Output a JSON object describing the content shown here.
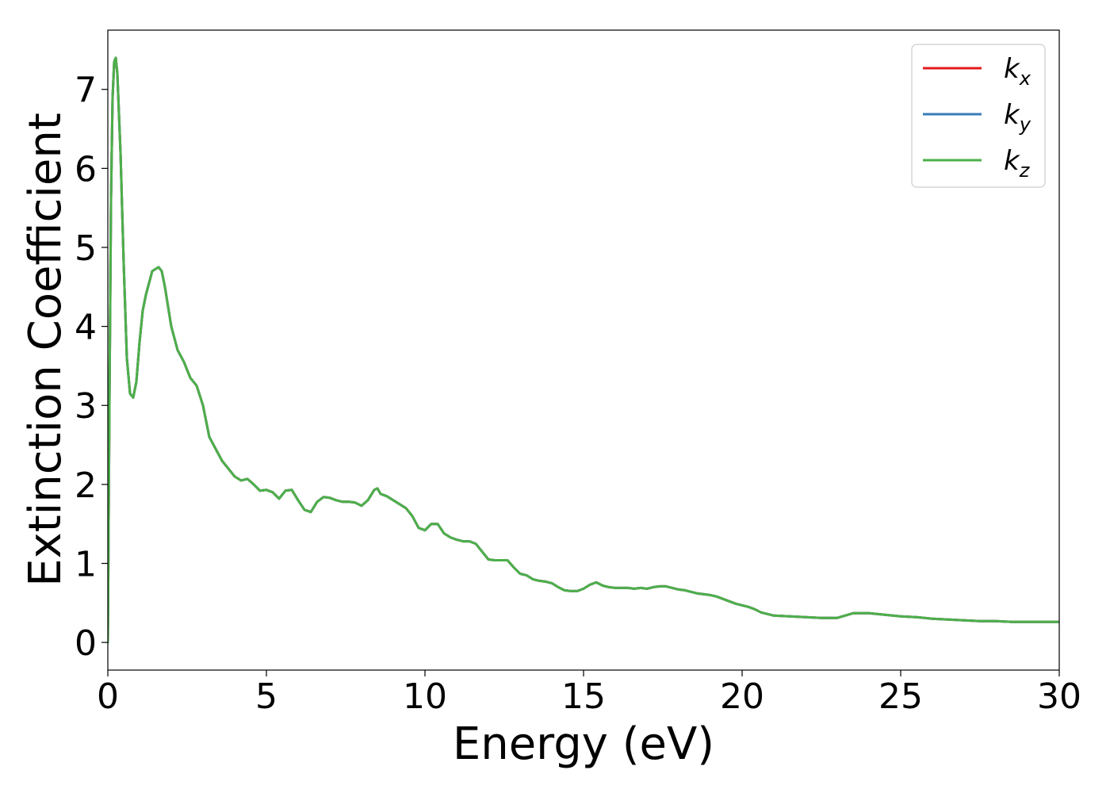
{
  "chart_data": {
    "type": "line",
    "title": "",
    "xlabel": "Energy (eV)",
    "ylabel": "Extinction Coefficient",
    "xlim": [
      0,
      30
    ],
    "ylim": [
      -0.35,
      7.75
    ],
    "xticks": [
      0,
      5,
      10,
      15,
      20,
      25,
      30
    ],
    "yticks": [
      0,
      1,
      2,
      3,
      4,
      5,
      6,
      7
    ],
    "grid": false,
    "legend_position": "top-right",
    "series": [
      {
        "name": "k_x",
        "legend_base": "k",
        "legend_sub": "x",
        "color": "#e41a1c",
        "x": [
          0,
          0.05,
          0.1,
          0.15,
          0.2,
          0.25,
          0.3,
          0.4,
          0.5,
          0.6,
          0.7,
          0.8,
          0.9,
          1.0,
          1.1,
          1.2,
          1.4,
          1.6,
          1.7,
          1.8,
          2.0,
          2.2,
          2.4,
          2.6,
          2.8,
          3.0,
          3.2,
          3.4,
          3.6,
          3.8,
          4.0,
          4.2,
          4.4,
          4.6,
          4.8,
          5.0,
          5.2,
          5.4,
          5.6,
          5.8,
          6.0,
          6.2,
          6.4,
          6.6,
          6.8,
          7.0,
          7.2,
          7.4,
          7.6,
          7.8,
          8.0,
          8.2,
          8.4,
          8.5,
          8.6,
          8.8,
          9.0,
          9.2,
          9.4,
          9.6,
          9.8,
          10.0,
          10.2,
          10.4,
          10.6,
          10.8,
          11.0,
          11.2,
          11.4,
          11.6,
          11.8,
          12.0,
          12.2,
          12.4,
          12.6,
          12.8,
          13.0,
          13.2,
          13.4,
          13.6,
          13.8,
          14.0,
          14.2,
          14.4,
          14.6,
          14.8,
          15.0,
          15.2,
          15.4,
          15.6,
          15.8,
          16.0,
          16.2,
          16.4,
          16.6,
          16.8,
          17.0,
          17.2,
          17.4,
          17.6,
          17.8,
          18.0,
          18.2,
          18.4,
          18.6,
          18.8,
          19.0,
          19.2,
          19.4,
          19.6,
          19.8,
          20.0,
          20.2,
          20.4,
          20.6,
          20.8,
          21.0,
          21.5,
          22.0,
          22.5,
          23.0,
          23.5,
          24.0,
          24.5,
          25.0,
          25.5,
          26.0,
          26.5,
          27.0,
          27.5,
          28.0,
          28.5,
          29.0,
          29.5,
          30.0
        ],
        "values": [
          0,
          3.0,
          5.6,
          6.9,
          7.35,
          7.4,
          7.2,
          6.2,
          4.8,
          3.6,
          3.15,
          3.1,
          3.3,
          3.8,
          4.2,
          4.4,
          4.7,
          4.75,
          4.7,
          4.5,
          4.0,
          3.7,
          3.55,
          3.35,
          3.25,
          3.0,
          2.6,
          2.45,
          2.3,
          2.2,
          2.1,
          2.05,
          2.07,
          2.0,
          1.92,
          1.93,
          1.9,
          1.82,
          1.92,
          1.93,
          1.8,
          1.68,
          1.65,
          1.78,
          1.84,
          1.83,
          1.8,
          1.78,
          1.78,
          1.77,
          1.73,
          1.8,
          1.93,
          1.95,
          1.88,
          1.85,
          1.8,
          1.75,
          1.7,
          1.6,
          1.45,
          1.42,
          1.5,
          1.5,
          1.38,
          1.33,
          1.3,
          1.28,
          1.28,
          1.25,
          1.15,
          1.05,
          1.04,
          1.04,
          1.04,
          0.95,
          0.87,
          0.85,
          0.8,
          0.78,
          0.77,
          0.75,
          0.7,
          0.66,
          0.65,
          0.65,
          0.68,
          0.73,
          0.76,
          0.72,
          0.7,
          0.69,
          0.69,
          0.69,
          0.68,
          0.69,
          0.68,
          0.7,
          0.71,
          0.71,
          0.69,
          0.67,
          0.66,
          0.64,
          0.62,
          0.61,
          0.6,
          0.58,
          0.55,
          0.52,
          0.49,
          0.47,
          0.45,
          0.42,
          0.38,
          0.36,
          0.34,
          0.33,
          0.32,
          0.31,
          0.31,
          0.37,
          0.37,
          0.35,
          0.33,
          0.32,
          0.3,
          0.29,
          0.28,
          0.27,
          0.27,
          0.26,
          0.26,
          0.26,
          0.26
        ]
      },
      {
        "name": "k_y",
        "legend_base": "k",
        "legend_sub": "y",
        "color": "#377eb8",
        "x": [
          0,
          0.05,
          0.1,
          0.15,
          0.2,
          0.25,
          0.3,
          0.4,
          0.5,
          0.6,
          0.7,
          0.8,
          0.9,
          1.0,
          1.1,
          1.2,
          1.4,
          1.6,
          1.7,
          1.8,
          2.0,
          2.2,
          2.4,
          2.6,
          2.8,
          3.0,
          3.2,
          3.4,
          3.6,
          3.8,
          4.0,
          4.2,
          4.4,
          4.6,
          4.8,
          5.0,
          5.2,
          5.4,
          5.6,
          5.8,
          6.0,
          6.2,
          6.4,
          6.6,
          6.8,
          7.0,
          7.2,
          7.4,
          7.6,
          7.8,
          8.0,
          8.2,
          8.4,
          8.5,
          8.6,
          8.8,
          9.0,
          9.2,
          9.4,
          9.6,
          9.8,
          10.0,
          10.2,
          10.4,
          10.6,
          10.8,
          11.0,
          11.2,
          11.4,
          11.6,
          11.8,
          12.0,
          12.2,
          12.4,
          12.6,
          12.8,
          13.0,
          13.2,
          13.4,
          13.6,
          13.8,
          14.0,
          14.2,
          14.4,
          14.6,
          14.8,
          15.0,
          15.2,
          15.4,
          15.6,
          15.8,
          16.0,
          16.2,
          16.4,
          16.6,
          16.8,
          17.0,
          17.2,
          17.4,
          17.6,
          17.8,
          18.0,
          18.2,
          18.4,
          18.6,
          18.8,
          19.0,
          19.2,
          19.4,
          19.6,
          19.8,
          20.0,
          20.2,
          20.4,
          20.6,
          20.8,
          21.0,
          21.5,
          22.0,
          22.5,
          23.0,
          23.5,
          24.0,
          24.5,
          25.0,
          25.5,
          26.0,
          26.5,
          27.0,
          27.5,
          28.0,
          28.5,
          29.0,
          29.5,
          30.0
        ],
        "values": [
          0,
          3.0,
          5.6,
          6.9,
          7.35,
          7.4,
          7.2,
          6.2,
          4.8,
          3.6,
          3.15,
          3.1,
          3.3,
          3.8,
          4.2,
          4.4,
          4.7,
          4.75,
          4.7,
          4.5,
          4.0,
          3.7,
          3.55,
          3.35,
          3.25,
          3.0,
          2.6,
          2.45,
          2.3,
          2.2,
          2.1,
          2.05,
          2.07,
          2.0,
          1.92,
          1.93,
          1.9,
          1.82,
          1.92,
          1.93,
          1.8,
          1.68,
          1.65,
          1.78,
          1.84,
          1.83,
          1.8,
          1.78,
          1.78,
          1.77,
          1.73,
          1.8,
          1.93,
          1.95,
          1.88,
          1.85,
          1.8,
          1.75,
          1.7,
          1.6,
          1.45,
          1.42,
          1.5,
          1.5,
          1.38,
          1.33,
          1.3,
          1.28,
          1.28,
          1.25,
          1.15,
          1.05,
          1.04,
          1.04,
          1.04,
          0.95,
          0.87,
          0.85,
          0.8,
          0.78,
          0.77,
          0.75,
          0.7,
          0.66,
          0.65,
          0.65,
          0.68,
          0.73,
          0.76,
          0.72,
          0.7,
          0.69,
          0.69,
          0.69,
          0.68,
          0.69,
          0.68,
          0.7,
          0.71,
          0.71,
          0.69,
          0.67,
          0.66,
          0.64,
          0.62,
          0.61,
          0.6,
          0.58,
          0.55,
          0.52,
          0.49,
          0.47,
          0.45,
          0.42,
          0.38,
          0.36,
          0.34,
          0.33,
          0.32,
          0.31,
          0.31,
          0.37,
          0.37,
          0.35,
          0.33,
          0.32,
          0.3,
          0.29,
          0.28,
          0.27,
          0.27,
          0.26,
          0.26,
          0.26,
          0.26
        ]
      },
      {
        "name": "k_z",
        "legend_base": "k",
        "legend_sub": "z",
        "color": "#4daf4a",
        "x": [
          0,
          0.05,
          0.1,
          0.15,
          0.2,
          0.25,
          0.3,
          0.4,
          0.5,
          0.6,
          0.7,
          0.8,
          0.9,
          1.0,
          1.1,
          1.2,
          1.4,
          1.6,
          1.7,
          1.8,
          2.0,
          2.2,
          2.4,
          2.6,
          2.8,
          3.0,
          3.2,
          3.4,
          3.6,
          3.8,
          4.0,
          4.2,
          4.4,
          4.6,
          4.8,
          5.0,
          5.2,
          5.4,
          5.6,
          5.8,
          6.0,
          6.2,
          6.4,
          6.6,
          6.8,
          7.0,
          7.2,
          7.4,
          7.6,
          7.8,
          8.0,
          8.2,
          8.4,
          8.5,
          8.6,
          8.8,
          9.0,
          9.2,
          9.4,
          9.6,
          9.8,
          10.0,
          10.2,
          10.4,
          10.6,
          10.8,
          11.0,
          11.2,
          11.4,
          11.6,
          11.8,
          12.0,
          12.2,
          12.4,
          12.6,
          12.8,
          13.0,
          13.2,
          13.4,
          13.6,
          13.8,
          14.0,
          14.2,
          14.4,
          14.6,
          14.8,
          15.0,
          15.2,
          15.4,
          15.6,
          15.8,
          16.0,
          16.2,
          16.4,
          16.6,
          16.8,
          17.0,
          17.2,
          17.4,
          17.6,
          17.8,
          18.0,
          18.2,
          18.4,
          18.6,
          18.8,
          19.0,
          19.2,
          19.4,
          19.6,
          19.8,
          20.0,
          20.2,
          20.4,
          20.6,
          20.8,
          21.0,
          21.5,
          22.0,
          22.5,
          23.0,
          23.5,
          24.0,
          24.5,
          25.0,
          25.5,
          26.0,
          26.5,
          27.0,
          27.5,
          28.0,
          28.5,
          29.0,
          29.5,
          30.0
        ],
        "values": [
          0,
          3.0,
          5.6,
          6.9,
          7.35,
          7.4,
          7.2,
          6.2,
          4.8,
          3.6,
          3.15,
          3.1,
          3.3,
          3.8,
          4.2,
          4.4,
          4.7,
          4.75,
          4.7,
          4.5,
          4.0,
          3.7,
          3.55,
          3.35,
          3.25,
          3.0,
          2.6,
          2.45,
          2.3,
          2.2,
          2.1,
          2.05,
          2.07,
          2.0,
          1.92,
          1.93,
          1.9,
          1.82,
          1.92,
          1.93,
          1.8,
          1.68,
          1.65,
          1.78,
          1.84,
          1.83,
          1.8,
          1.78,
          1.78,
          1.77,
          1.73,
          1.8,
          1.93,
          1.95,
          1.88,
          1.85,
          1.8,
          1.75,
          1.7,
          1.6,
          1.45,
          1.42,
          1.5,
          1.5,
          1.38,
          1.33,
          1.3,
          1.28,
          1.28,
          1.25,
          1.15,
          1.05,
          1.04,
          1.04,
          1.04,
          0.95,
          0.87,
          0.85,
          0.8,
          0.78,
          0.77,
          0.75,
          0.7,
          0.66,
          0.65,
          0.65,
          0.68,
          0.73,
          0.76,
          0.72,
          0.7,
          0.69,
          0.69,
          0.69,
          0.68,
          0.69,
          0.68,
          0.7,
          0.71,
          0.71,
          0.69,
          0.67,
          0.66,
          0.64,
          0.62,
          0.61,
          0.6,
          0.58,
          0.55,
          0.52,
          0.49,
          0.47,
          0.45,
          0.42,
          0.38,
          0.36,
          0.34,
          0.33,
          0.32,
          0.31,
          0.31,
          0.37,
          0.37,
          0.35,
          0.33,
          0.32,
          0.3,
          0.29,
          0.28,
          0.27,
          0.27,
          0.26,
          0.26,
          0.26,
          0.26
        ]
      }
    ]
  }
}
